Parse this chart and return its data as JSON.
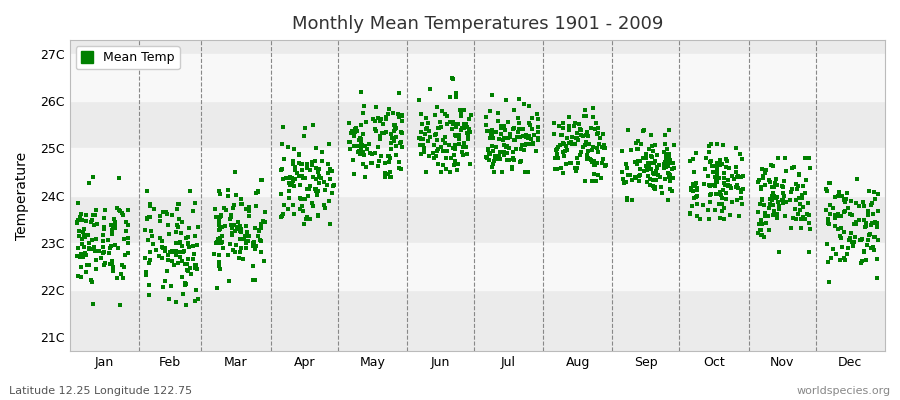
{
  "title": "Monthly Mean Temperatures 1901 - 2009",
  "ylabel": "Temperature",
  "xlabel_bottom": "Latitude 12.25 Longitude 122.75",
  "watermark": "worldspecies.org",
  "legend_label": "Mean Temp",
  "dot_color": "#008000",
  "bg_color": "#ffffff",
  "plot_bg_color": "#ebebeb",
  "band_color": "#f8f8f8",
  "ytick_labels": [
    "21C",
    "22C",
    "23C",
    "24C",
    "25C",
    "26C",
    "27C"
  ],
  "ytick_values": [
    21,
    22,
    23,
    24,
    25,
    26,
    27
  ],
  "ylim": [
    20.7,
    27.3
  ],
  "months": [
    "Jan",
    "Feb",
    "Mar",
    "Apr",
    "May",
    "Jun",
    "Jul",
    "Aug",
    "Sep",
    "Oct",
    "Nov",
    "Dec"
  ],
  "year_start": 1901,
  "year_end": 2009,
  "monthly_means": [
    23.0,
    22.8,
    23.3,
    24.3,
    25.2,
    25.3,
    25.2,
    25.0,
    24.6,
    24.3,
    23.9,
    23.4
  ],
  "monthly_stds": [
    0.5,
    0.55,
    0.5,
    0.45,
    0.42,
    0.4,
    0.38,
    0.37,
    0.38,
    0.4,
    0.45,
    0.48
  ],
  "monthly_min_offsets": [
    -2.1,
    -1.9,
    -1.3,
    -0.9,
    -0.8,
    -0.8,
    -0.7,
    -0.7,
    -0.7,
    -0.8,
    -1.1,
    -1.3
  ],
  "monthly_max_offsets": [
    1.5,
    1.3,
    1.2,
    1.2,
    1.3,
    1.2,
    1.0,
    0.9,
    0.8,
    0.8,
    0.9,
    1.0
  ],
  "dashed_line_color": "#888888",
  "spine_color": "#bbbbbb",
  "title_fontsize": 13,
  "tick_fontsize": 9,
  "ylabel_fontsize": 10
}
